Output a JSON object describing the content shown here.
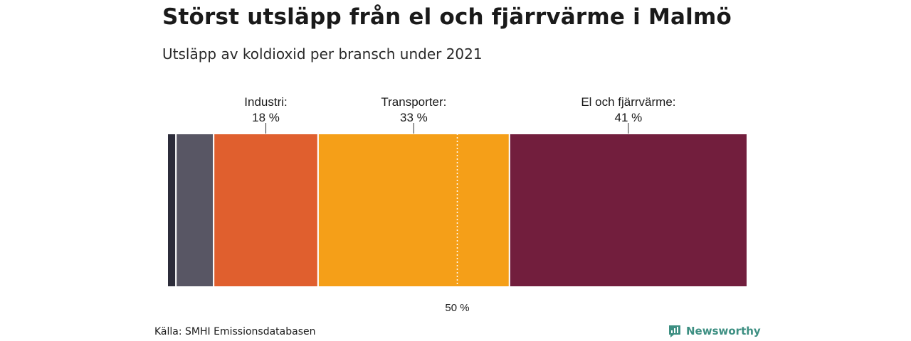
{
  "header": {
    "title": "Störst utsläpp från el och fjärrvärme i Malmö",
    "subtitle": "Utsläpp av koldioxid per bransch under 2021"
  },
  "chart_data": {
    "type": "bar",
    "orientation": "horizontal-stacked",
    "unit": "%",
    "xlim": [
      0,
      100
    ],
    "segments": [
      {
        "name": "",
        "value": 1.5,
        "color": "#2c2c3a",
        "label_lines": []
      },
      {
        "name": "",
        "value": 6.5,
        "color": "#585664",
        "label_lines": []
      },
      {
        "name": "Industri",
        "value": 18,
        "color": "#e05f2e",
        "label_lines": [
          "Industri:",
          "18 %"
        ]
      },
      {
        "name": "Transporter",
        "value": 33,
        "color": "#f59f18",
        "label_lines": [
          "Transporter:",
          "33 %"
        ]
      },
      {
        "name": "El och fjärrvärme",
        "value": 41,
        "color": "#721e3d",
        "label_lines": [
          "El och fjärrvärme:",
          "41 %"
        ]
      }
    ],
    "reference_line": {
      "value": 50,
      "label": "50 %"
    }
  },
  "footer": {
    "source": "Källa: SMHI Emissionsdatabasen",
    "brand": "Newsworthy"
  },
  "colors": {
    "brand": "#3d8f82"
  }
}
